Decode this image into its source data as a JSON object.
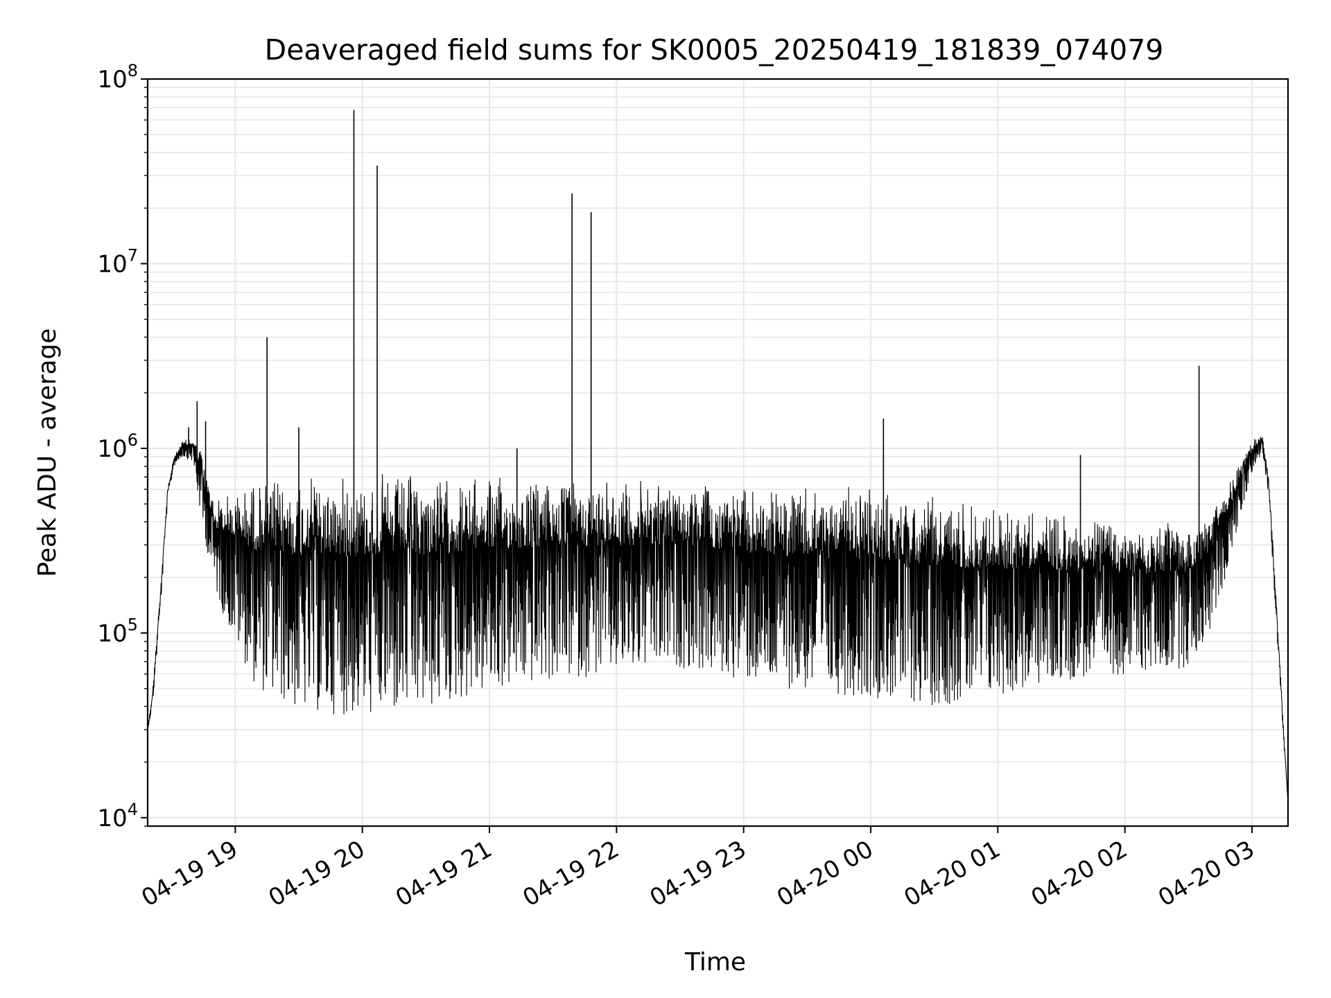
{
  "chart_data": {
    "type": "line",
    "title": "Deaveraged field sums for SK0005_20250419_181839_074079",
    "xlabel": "Time",
    "ylabel": "Peak ADU - average",
    "y_scale": "log",
    "ylim": [
      9000,
      100000000
    ],
    "xlim": [
      "2025-04-19 18:18:39",
      "2025-04-20 03:17:00"
    ],
    "grid": true,
    "line_color": "#000000",
    "grid_color": "#e6e6e6",
    "x_ticks": [
      {
        "value": "2025-04-19 19:00",
        "label": "04-19 19"
      },
      {
        "value": "2025-04-19 20:00",
        "label": "04-19 20"
      },
      {
        "value": "2025-04-19 21:00",
        "label": "04-19 21"
      },
      {
        "value": "2025-04-19 22:00",
        "label": "04-19 22"
      },
      {
        "value": "2025-04-19 23:00",
        "label": "04-19 23"
      },
      {
        "value": "2025-04-20 00:00",
        "label": "04-20 00"
      },
      {
        "value": "2025-04-20 01:00",
        "label": "04-20 01"
      },
      {
        "value": "2025-04-20 02:00",
        "label": "04-20 02"
      },
      {
        "value": "2025-04-20 03:00",
        "label": "04-20 03"
      }
    ],
    "y_ticks": [
      {
        "value": 10000,
        "base": "10",
        "exp": "4"
      },
      {
        "value": 100000,
        "base": "10",
        "exp": "5"
      },
      {
        "value": 1000000,
        "base": "10",
        "exp": "6"
      },
      {
        "value": 10000000,
        "base": "10",
        "exp": "7"
      },
      {
        "value": 100000000,
        "base": "10",
        "exp": "8"
      }
    ],
    "series": [
      {
        "envelope": [
          {
            "t": "2025-04-19 18:18:39",
            "upper": 30000,
            "lower": 30000
          },
          {
            "t": "2025-04-19 18:21",
            "upper": 50000,
            "lower": 40000
          },
          {
            "t": "2025-04-19 18:25",
            "upper": 200000,
            "lower": 150000
          },
          {
            "t": "2025-04-19 18:28",
            "upper": 600000,
            "lower": 500000
          },
          {
            "t": "2025-04-19 18:31",
            "upper": 900000,
            "lower": 800000
          },
          {
            "t": "2025-04-19 18:35",
            "upper": 1100000,
            "lower": 900000
          },
          {
            "t": "2025-04-19 18:40",
            "upper": 1150000,
            "lower": 850000
          },
          {
            "t": "2025-04-19 18:44",
            "upper": 1000000,
            "lower": 400000
          },
          {
            "t": "2025-04-19 18:50",
            "upper": 550000,
            "lower": 180000
          },
          {
            "t": "2025-04-19 18:55",
            "upper": 580000,
            "lower": 120000
          },
          {
            "t": "2025-04-19 19:00",
            "upper": 620000,
            "lower": 90000
          },
          {
            "t": "2025-04-19 19:10",
            "upper": 700000,
            "lower": 50000
          },
          {
            "t": "2025-04-19 19:30",
            "upper": 720000,
            "lower": 38000
          },
          {
            "t": "2025-04-19 20:00",
            "upper": 750000,
            "lower": 35000
          },
          {
            "t": "2025-04-19 20:30",
            "upper": 740000,
            "lower": 38000
          },
          {
            "t": "2025-04-19 21:00",
            "upper": 720000,
            "lower": 48000
          },
          {
            "t": "2025-04-19 21:30",
            "upper": 700000,
            "lower": 55000
          },
          {
            "t": "2025-04-19 22:00",
            "upper": 700000,
            "lower": 60000
          },
          {
            "t": "2025-04-19 22:30",
            "upper": 680000,
            "lower": 65000
          },
          {
            "t": "2025-04-19 23:00",
            "upper": 640000,
            "lower": 55000
          },
          {
            "t": "2025-04-19 23:30",
            "upper": 620000,
            "lower": 48000
          },
          {
            "t": "2025-04-20 00:00",
            "upper": 620000,
            "lower": 45000
          },
          {
            "t": "2025-04-20 00:30",
            "upper": 580000,
            "lower": 40000
          },
          {
            "t": "2025-04-20 01:00",
            "upper": 520000,
            "lower": 45000
          },
          {
            "t": "2025-04-20 01:30",
            "upper": 450000,
            "lower": 55000
          },
          {
            "t": "2025-04-20 02:00",
            "upper": 400000,
            "lower": 60000
          },
          {
            "t": "2025-04-20 02:30",
            "upper": 400000,
            "lower": 65000
          },
          {
            "t": "2025-04-20 02:40",
            "upper": 450000,
            "lower": 100000
          },
          {
            "t": "2025-04-20 02:50",
            "upper": 700000,
            "lower": 250000
          },
          {
            "t": "2025-04-20 02:55",
            "upper": 900000,
            "lower": 450000
          },
          {
            "t": "2025-04-20 03:00",
            "upper": 1100000,
            "lower": 750000
          },
          {
            "t": "2025-04-20 03:05",
            "upper": 1200000,
            "lower": 950000
          },
          {
            "t": "2025-04-20 03:08",
            "upper": 700000,
            "lower": 500000
          },
          {
            "t": "2025-04-20 03:12",
            "upper": 120000,
            "lower": 90000
          },
          {
            "t": "2025-04-20 03:15",
            "upper": 30000,
            "lower": 25000
          },
          {
            "t": "2025-04-20 03:17",
            "upper": 12000,
            "lower": 12000
          }
        ],
        "spikes": [
          {
            "t": "2025-04-19 18:38",
            "value": 1300000
          },
          {
            "t": "2025-04-19 18:42",
            "value": 1800000
          },
          {
            "t": "2025-04-19 18:46",
            "value": 1400000
          },
          {
            "t": "2025-04-19 19:15",
            "value": 4000000
          },
          {
            "t": "2025-04-19 19:30",
            "value": 1300000
          },
          {
            "t": "2025-04-19 19:56",
            "value": 68000000
          },
          {
            "t": "2025-04-19 20:07",
            "value": 34000000
          },
          {
            "t": "2025-04-19 21:13",
            "value": 1000000
          },
          {
            "t": "2025-04-19 21:39",
            "value": 24000000
          },
          {
            "t": "2025-04-19 21:48",
            "value": 19000000
          },
          {
            "t": "2025-04-20 00:06",
            "value": 1450000
          },
          {
            "t": "2025-04-20 01:39",
            "value": 920000
          },
          {
            "t": "2025-04-20 02:35",
            "value": 2800000
          }
        ]
      }
    ]
  }
}
